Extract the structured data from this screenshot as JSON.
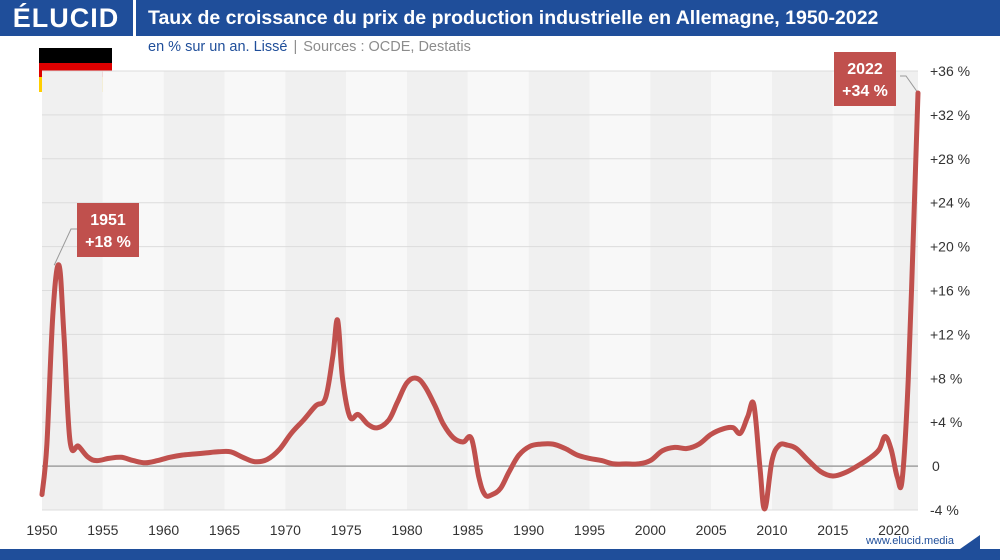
{
  "header": {
    "logo": "ÉLUCID",
    "title": "Taux de croissance du prix de production industrielle en Allemagne, 1950-2022"
  },
  "subtitle": {
    "unit": "en % sur un an. Lissé",
    "separator": "|",
    "sources": "Sources : OCDE, Destatis"
  },
  "footer": {
    "url": "www.elucid.media"
  },
  "colors": {
    "brand": "#1f4e9a",
    "line": "#c0504d",
    "negative_label": "#d03b3b",
    "flag": [
      "#000000",
      "#dd0000",
      "#ffce00"
    ]
  },
  "chart_data": {
    "type": "line",
    "title": "Taux de croissance du prix de production industrielle en Allemagne, 1950-2022",
    "ylabel": "en % sur un an",
    "ylim": [
      -4,
      36
    ],
    "xlim": [
      1950,
      2022
    ],
    "y_ticks": [
      36,
      32,
      28,
      24,
      20,
      16,
      12,
      8,
      4,
      0,
      -4
    ],
    "y_tick_labels": [
      "+36 %",
      "+32 %",
      "+28 %",
      "+24 %",
      "+20 %",
      "+16 %",
      "+12 %",
      "+8 %",
      "+4 %",
      "0",
      "-4 %"
    ],
    "x_ticks": [
      1950,
      1955,
      1960,
      1965,
      1970,
      1975,
      1980,
      1985,
      1990,
      1995,
      2000,
      2005,
      2010,
      2015,
      2020
    ],
    "x_tick_labels": [
      "1950",
      "1955",
      "1960",
      "1965",
      "1970",
      "1975",
      "1980",
      "1985",
      "1990",
      "1995",
      "2000",
      "2005",
      "2010",
      "2015",
      "2020"
    ],
    "grid": true,
    "series": [
      {
        "name": "Prix de production industrielle",
        "x": [
          1950,
          1950.4,
          1950.9,
          1951.4,
          1951.8,
          1952.3,
          1953,
          1953.8,
          1954.5,
          1955.5,
          1956.5,
          1957.5,
          1958.5,
          1959.5,
          1960.5,
          1961.5,
          1962.5,
          1963.5,
          1964.5,
          1965.5,
          1966.5,
          1967.5,
          1968.5,
          1969.5,
          1970.5,
          1971.5,
          1972.5,
          1973.3,
          1973.9,
          1974.3,
          1974.7,
          1975.3,
          1976,
          1976.8,
          1977.6,
          1978.5,
          1979.2,
          1980,
          1980.8,
          1981.5,
          1982.3,
          1983,
          1983.8,
          1984.6,
          1985.3,
          1985.9,
          1986.4,
          1987,
          1987.7,
          1988.4,
          1989.2,
          1990.1,
          1991,
          1992,
          1993,
          1994,
          1995,
          1996,
          1997,
          1998,
          1999,
          2000,
          2001,
          2002,
          2003,
          2004,
          2005,
          2006,
          2006.8,
          2007.4,
          2008,
          2008.5,
          2009,
          2009.4,
          2010,
          2010.6,
          2011.3,
          2012,
          2013,
          2014,
          2015,
          2016,
          2017,
          2018,
          2018.8,
          2019.3,
          2019.8,
          2020.3,
          2020.7,
          2021.2,
          2021.7,
          2022
        ],
        "values": [
          -2.6,
          2,
          14,
          18.3,
          12,
          2.3,
          1.8,
          0.8,
          0.5,
          0.7,
          0.8,
          0.5,
          0.3,
          0.5,
          0.8,
          1,
          1.1,
          1.2,
          1.3,
          1.3,
          0.8,
          0.4,
          0.6,
          1.5,
          3,
          4.2,
          5.5,
          6.2,
          10,
          13.3,
          8,
          4.5,
          4.7,
          3.8,
          3.5,
          4.2,
          5.8,
          7.6,
          8,
          7.2,
          5.5,
          3.8,
          2.6,
          2.2,
          2.5,
          -1,
          -2.6,
          -2.6,
          -2,
          -0.5,
          1,
          1.8,
          2,
          2,
          1.6,
          1,
          0.7,
          0.5,
          0.2,
          0.2,
          0.2,
          0.5,
          1.4,
          1.7,
          1.6,
          2,
          2.9,
          3.4,
          3.5,
          3,
          4.5,
          5.6,
          0,
          -3.9,
          0.5,
          1.9,
          1.9,
          1.6,
          0.5,
          -0.5,
          -0.9,
          -0.6,
          0,
          0.7,
          1.5,
          2.7,
          1.5,
          -1,
          -1.2,
          8,
          24,
          34
        ]
      }
    ],
    "annotations": [
      {
        "x": 1951,
        "y": 18.3,
        "line1": "1951",
        "line2": "+18 %"
      },
      {
        "x": 2022,
        "y": 34,
        "line1": "2022",
        "line2": "+34 %"
      }
    ]
  }
}
